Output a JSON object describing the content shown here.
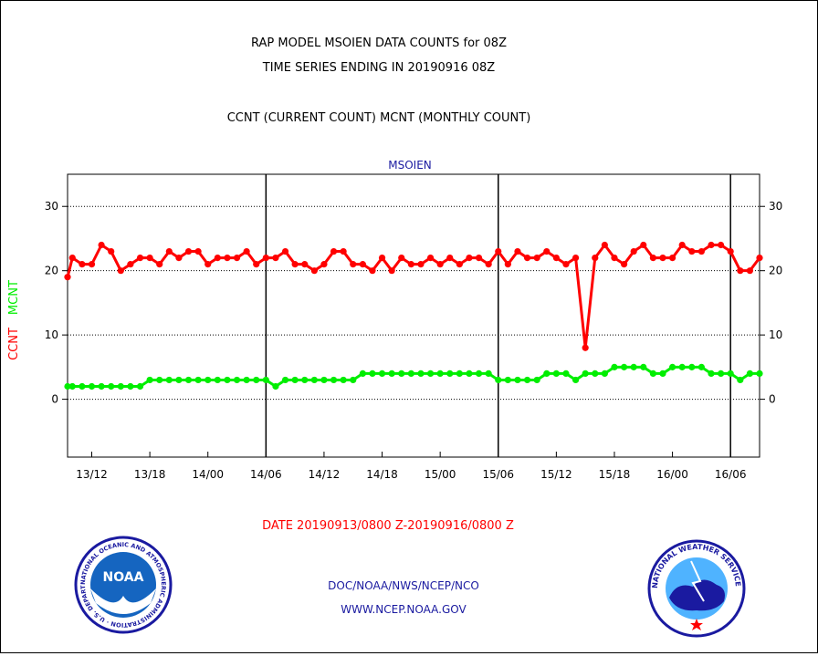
{
  "titles": {
    "line1": "RAP MODEL MSOIEN DATA COUNTS for 08Z",
    "line2": "TIME SERIES ENDING IN 20190916 08Z",
    "line3": "CCNT (CURRENT COUNT) MCNT (MONTHLY COUNT)"
  },
  "date_range": "DATE 20190913/0800 Z-20190916/0800 Z",
  "footer": {
    "line1": "DOC/NOAA/NWS/NCEP/NCO",
    "line2": "WWW.NCEP.NOAA.GOV"
  },
  "logos": {
    "noaa": {
      "center_text": "NOAA",
      "ring_text": "NATIONAL OCEANIC AND ATMOSPHERIC ADMINISTRATION · U.S. DEPARTMENT OF COMMERCE ·"
    },
    "nws": {
      "ring_text": "NATIONAL WEATHER SERVICE"
    }
  },
  "colors": {
    "ccnt": "#ff0000",
    "mcnt": "#00ee00",
    "station": "#1a1aa0",
    "axis": "#000000"
  },
  "chart_data": {
    "type": "line",
    "title": "MSOIEN",
    "ylabel_parts": [
      {
        "text": "CCNT",
        "color": "#ff0000"
      },
      {
        "text": "MCNT",
        "color": "#00ee00"
      }
    ],
    "y_ticks": [
      0,
      10,
      20,
      30
    ],
    "ylim": [
      -9,
      35
    ],
    "xlim": [
      9.5,
      81
    ],
    "x_tick_hours": [
      12,
      18,
      24,
      30,
      36,
      42,
      48,
      54,
      60,
      66,
      72,
      78
    ],
    "x_tick_labels": [
      "13/12",
      "13/18",
      "14/00",
      "14/06",
      "14/12",
      "14/18",
      "15/00",
      "15/06",
      "15/12",
      "15/18",
      "16/00",
      "16/06"
    ],
    "day_boundaries": [
      30,
      54,
      78
    ],
    "grid_y": [
      0,
      10,
      20,
      30
    ],
    "x_unit": "hours since 2019-09-13 00Z",
    "series": [
      {
        "name": "CCNT",
        "color": "#ff0000",
        "x": [
          9.5,
          10,
          11,
          12,
          13,
          14,
          15,
          16,
          17,
          18,
          19,
          20,
          21,
          22,
          23,
          24,
          25,
          26,
          27,
          28,
          29,
          30,
          31,
          32,
          33,
          34,
          35,
          36,
          37,
          38,
          39,
          40,
          41,
          42,
          43,
          44,
          45,
          46,
          47,
          48,
          49,
          50,
          51,
          52,
          53,
          54,
          55,
          56,
          57,
          58,
          59,
          60,
          61,
          62,
          63,
          64,
          65,
          66,
          67,
          68,
          69,
          70,
          71,
          72,
          73,
          74,
          75,
          76,
          77,
          78,
          79,
          80,
          81
        ],
        "values": [
          19,
          22,
          21,
          21,
          24,
          23,
          20,
          21,
          22,
          22,
          21,
          23,
          22,
          23,
          23,
          21,
          22,
          22,
          22,
          23,
          21,
          22,
          22,
          23,
          21,
          21,
          20,
          21,
          23,
          23,
          21,
          21,
          20,
          22,
          20,
          22,
          21,
          21,
          22,
          21,
          22,
          21,
          22,
          22,
          21,
          23,
          21,
          23,
          22,
          22,
          23,
          22,
          21,
          22,
          8,
          22,
          24,
          22,
          21,
          23,
          24,
          22,
          22,
          22,
          24,
          23,
          23,
          24,
          24,
          23,
          20,
          20,
          22
        ]
      },
      {
        "name": "MCNT",
        "color": "#00ee00",
        "x": [
          9.5,
          10,
          11,
          12,
          13,
          14,
          15,
          16,
          17,
          18,
          19,
          20,
          21,
          22,
          23,
          24,
          25,
          26,
          27,
          28,
          29,
          30,
          31,
          32,
          33,
          34,
          35,
          36,
          37,
          38,
          39,
          40,
          41,
          42,
          43,
          44,
          45,
          46,
          47,
          48,
          49,
          50,
          51,
          52,
          53,
          54,
          55,
          56,
          57,
          58,
          59,
          60,
          61,
          62,
          63,
          64,
          65,
          66,
          67,
          68,
          69,
          70,
          71,
          72,
          73,
          74,
          75,
          76,
          77,
          78,
          79,
          80,
          81
        ],
        "values": [
          2,
          2,
          2,
          2,
          2,
          2,
          2,
          2,
          2,
          3,
          3,
          3,
          3,
          3,
          3,
          3,
          3,
          3,
          3,
          3,
          3,
          3,
          2,
          3,
          3,
          3,
          3,
          3,
          3,
          3,
          3,
          4,
          4,
          4,
          4,
          4,
          4,
          4,
          4,
          4,
          4,
          4,
          4,
          4,
          4,
          3,
          3,
          3,
          3,
          3,
          4,
          4,
          4,
          3,
          4,
          4,
          4,
          5,
          5,
          5,
          5,
          4,
          4,
          5,
          5,
          5,
          5,
          4,
          4,
          4,
          3,
          4,
          4
        ]
      }
    ]
  }
}
